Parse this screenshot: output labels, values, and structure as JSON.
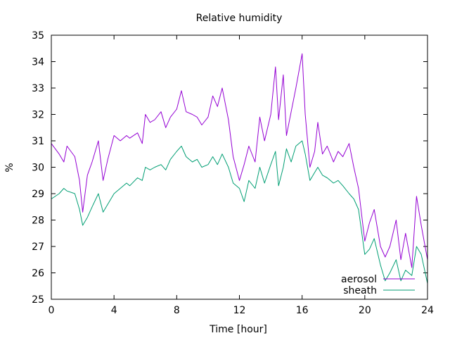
{
  "chart_data": {
    "type": "line",
    "title": "Relative humidity",
    "xlabel": "Time [hour]",
    "ylabel": "%",
    "xlim": [
      0,
      24
    ],
    "ylim": [
      25,
      35
    ],
    "xticks": [
      0,
      4,
      8,
      12,
      16,
      20,
      24
    ],
    "yticks": [
      25,
      26,
      27,
      28,
      29,
      30,
      31,
      32,
      33,
      34,
      35
    ],
    "grid": false,
    "legend_position": "bottom-right",
    "series": [
      {
        "name": "aerosol",
        "color": "#9400d3",
        "x": [
          0,
          0.5,
          0.8,
          1,
          1.5,
          1.8,
          2,
          2.3,
          2.6,
          3,
          3.3,
          3.6,
          4,
          4.4,
          4.8,
          5,
          5.5,
          5.8,
          6,
          6.3,
          6.6,
          7,
          7.3,
          7.6,
          8,
          8.3,
          8.6,
          9,
          9.3,
          9.6,
          10,
          10.3,
          10.6,
          10.9,
          11.3,
          11.6,
          12,
          12.3,
          12.6,
          13,
          13.3,
          13.6,
          14,
          14.3,
          14.5,
          14.8,
          15,
          15.3,
          15.6,
          16,
          16.2,
          16.5,
          16.8,
          17,
          17.3,
          17.6,
          18,
          18.3,
          18.6,
          19,
          19.3,
          19.6,
          20,
          20.3,
          20.6,
          21,
          21.3,
          21.6,
          22,
          22.3,
          22.6,
          23,
          23.3,
          23.6,
          24
        ],
        "y": [
          30.9,
          30.5,
          30.2,
          30.8,
          30.4,
          29.5,
          28.3,
          29.7,
          30.2,
          31.0,
          29.5,
          30.3,
          31.2,
          31.0,
          31.2,
          31.1,
          31.3,
          30.9,
          32.0,
          31.7,
          31.8,
          32.1,
          31.5,
          31.9,
          32.2,
          32.9,
          32.1,
          32.0,
          31.9,
          31.6,
          31.9,
          32.7,
          32.3,
          33.0,
          31.8,
          30.4,
          29.5,
          30.1,
          30.8,
          30.2,
          31.9,
          31.0,
          32.0,
          33.8,
          31.8,
          33.5,
          31.2,
          32.1,
          33.0,
          34.3,
          32.0,
          30.0,
          30.6,
          31.7,
          30.5,
          30.8,
          30.2,
          30.6,
          30.4,
          30.9,
          30.0,
          29.2,
          27.2,
          27.9,
          28.4,
          27.0,
          26.6,
          27.0,
          28.0,
          26.5,
          27.5,
          26.2,
          28.9,
          27.8,
          26.5
        ]
      },
      {
        "name": "sheath",
        "color": "#009e73",
        "x": [
          0,
          0.5,
          0.8,
          1,
          1.5,
          1.8,
          2,
          2.3,
          2.6,
          3,
          3.3,
          3.6,
          4,
          4.4,
          4.8,
          5,
          5.5,
          5.8,
          6,
          6.3,
          6.6,
          7,
          7.3,
          7.6,
          8,
          8.3,
          8.6,
          9,
          9.3,
          9.6,
          10,
          10.3,
          10.6,
          10.9,
          11.3,
          11.6,
          12,
          12.3,
          12.6,
          13,
          13.3,
          13.6,
          14,
          14.3,
          14.5,
          14.8,
          15,
          15.3,
          15.6,
          16,
          16.2,
          16.5,
          16.8,
          17,
          17.3,
          17.6,
          18,
          18.3,
          18.6,
          19,
          19.3,
          19.6,
          20,
          20.3,
          20.6,
          21,
          21.3,
          21.6,
          22,
          22.3,
          22.6,
          23,
          23.3,
          23.6,
          24
        ],
        "y": [
          28.8,
          29.0,
          29.2,
          29.1,
          29.0,
          28.4,
          27.8,
          28.1,
          28.5,
          29.0,
          28.3,
          28.6,
          29.0,
          29.2,
          29.4,
          29.3,
          29.6,
          29.5,
          30.0,
          29.9,
          30.0,
          30.1,
          29.9,
          30.3,
          30.6,
          30.8,
          30.4,
          30.2,
          30.3,
          30.0,
          30.1,
          30.4,
          30.1,
          30.5,
          30.0,
          29.4,
          29.2,
          28.7,
          29.5,
          29.2,
          30.0,
          29.4,
          30.1,
          30.6,
          29.3,
          30.0,
          30.7,
          30.2,
          30.8,
          31.0,
          30.5,
          29.5,
          29.8,
          30.0,
          29.7,
          29.6,
          29.4,
          29.5,
          29.3,
          29.0,
          28.8,
          28.4,
          26.7,
          26.9,
          27.3,
          26.3,
          25.7,
          26.0,
          26.5,
          25.7,
          26.1,
          25.9,
          27.0,
          26.7,
          25.6
        ]
      }
    ]
  }
}
